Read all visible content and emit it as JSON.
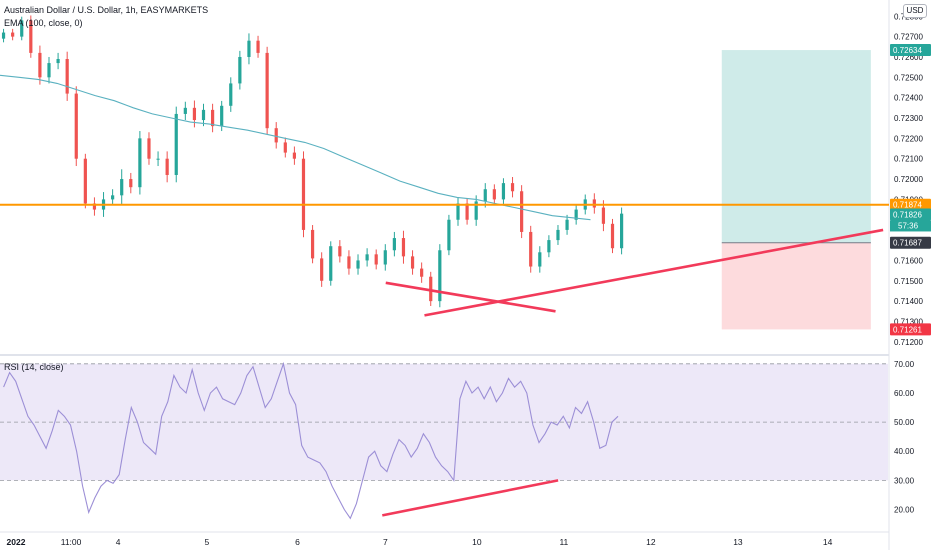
{
  "header": {
    "title": "Australian Dollar / U.S. Dollar, 1h, EASYMARKETS",
    "ema_label": "EMA (100, close, 0)",
    "currency": "USD"
  },
  "rsi": {
    "label": "RSI (14, close)"
  },
  "colors": {
    "up": "#26a69a",
    "down": "#ef5350",
    "ema": "#5ab1c0",
    "orange": "#ff9800",
    "trend": "#f23a5a",
    "rsi_line": "#9c8fd6",
    "rsi_band": "#ede8f8",
    "target": "#26a69a",
    "stop": "#f23645",
    "entry": "#787b86"
  },
  "chart_data": [
    {
      "type": "candlestick",
      "symbol": "Australian Dollar / U.S. Dollar",
      "interval": "1h",
      "ylim": [
        0.7115,
        0.7288
      ],
      "y_ticks": [
        "0.72800",
        "0.72700",
        "0.72600",
        "0.72500",
        "0.72400",
        "0.72300",
        "0.72200",
        "0.72100",
        "0.72000",
        "0.71900",
        "0.71800",
        "0.71700",
        "0.71600",
        "0.71500",
        "0.71400",
        "0.71300",
        "0.71200"
      ],
      "x_ticks": [
        "2022",
        "11:00",
        "4",
        "5",
        "6",
        "7",
        "10",
        "11",
        "12",
        "13",
        "14"
      ],
      "close_path": [
        [
          0.7272,
          3
        ],
        [
          0.727,
          3
        ],
        [
          0.7278,
          3
        ],
        [
          0.7262,
          4
        ],
        [
          0.725,
          6
        ],
        [
          0.7257,
          5
        ],
        [
          0.7259,
          5
        ],
        [
          0.7242,
          6
        ],
        [
          0.721,
          6
        ],
        [
          0.7188,
          4
        ],
        [
          0.7185,
          5
        ],
        [
          0.719,
          6
        ],
        [
          0.7192,
          5
        ],
        [
          0.72,
          8
        ],
        [
          0.7196,
          5
        ],
        [
          0.722,
          6
        ],
        [
          0.721,
          5
        ],
        [
          0.721,
          6
        ],
        [
          0.7202,
          6
        ],
        [
          0.7232,
          6
        ],
        [
          0.7235,
          5
        ],
        [
          0.7229,
          6
        ],
        [
          0.7234,
          5
        ],
        [
          0.7226,
          5
        ],
        [
          0.7236,
          4
        ],
        [
          0.7247,
          5
        ],
        [
          0.726,
          5
        ],
        [
          0.7268,
          6
        ],
        [
          0.7262,
          4
        ],
        [
          0.7225,
          5
        ],
        [
          0.7218,
          5
        ],
        [
          0.7213,
          4
        ],
        [
          0.721,
          5
        ],
        [
          0.7175,
          6
        ],
        [
          0.7161,
          4
        ],
        [
          0.715,
          5
        ],
        [
          0.7167,
          4
        ],
        [
          0.7162,
          5
        ],
        [
          0.7156,
          5
        ],
        [
          0.716,
          5
        ],
        [
          0.7163,
          5
        ],
        [
          0.7158,
          4
        ],
        [
          0.7165,
          5
        ],
        [
          0.7171,
          5
        ],
        [
          0.7162,
          6
        ],
        [
          0.7156,
          5
        ],
        [
          0.7152,
          5
        ],
        [
          0.714,
          4
        ],
        [
          0.7165,
          5
        ],
        [
          0.718,
          4
        ],
        [
          0.7188,
          5
        ],
        [
          0.718,
          4
        ],
        [
          0.7189,
          5
        ],
        [
          0.7195,
          5
        ],
        [
          0.719,
          4
        ],
        [
          0.7198,
          4
        ],
        [
          0.7194,
          5
        ],
        [
          0.7174,
          5
        ],
        [
          0.7157,
          5
        ],
        [
          0.7164,
          5
        ],
        [
          0.717,
          4
        ],
        [
          0.7175,
          4
        ],
        [
          0.718,
          4
        ],
        [
          0.7185,
          4
        ],
        [
          0.719,
          4
        ],
        [
          0.7186,
          5
        ],
        [
          0.7178,
          6
        ],
        [
          0.7166,
          4
        ],
        [
          0.7183,
          5
        ]
      ],
      "ema_100": [
        0.7251,
        0.725,
        0.7249,
        0.7247,
        0.7244,
        0.7241,
        0.72385,
        0.7235,
        0.7232,
        0.723,
        0.7228,
        0.7227,
        0.72255,
        0.7224,
        0.7222,
        0.722,
        0.7218,
        0.7215,
        0.7211,
        0.7207,
        0.7203,
        0.7199,
        0.7196,
        0.7193,
        0.7191,
        0.719,
        0.7188,
        0.7186,
        0.7184,
        0.7182,
        0.7181,
        0.718
      ],
      "last_price": "0.71826",
      "countdown": "57:36",
      "price_labels": [
        {
          "text": "0.72634",
          "value": 0.72634,
          "color": "#26a69a"
        },
        {
          "text": "0.71874",
          "value": 0.71874,
          "color": "#ff9800"
        },
        {
          "text": "0.71826",
          "value": 0.71826,
          "color": "#26a69a"
        },
        {
          "text": "0.71687",
          "value": 0.71687,
          "color": "#363a45"
        },
        {
          "text": "0.71261",
          "value": 0.71261,
          "color": "#f23645"
        }
      ],
      "horizontal_level": 0.71874,
      "position": {
        "entry": 0.71687,
        "target": 0.72634,
        "stop": 0.71261,
        "start_bar": 0.8128,
        "end_bar": 0.9807
      },
      "support_lines": [
        {
          "from": [
            0.4344,
            0.7149
          ],
          "to": [
            0.6256,
            0.7135
          ]
        },
        {
          "from": [
            0.478,
            0.7133
          ],
          "to": [
            0.9945,
            0.7175
          ]
        }
      ]
    },
    {
      "type": "line",
      "name": "RSI (14, close)",
      "ylim": [
        14,
        72
      ],
      "y_ticks": [
        "70.00",
        "60.00",
        "50.00",
        "40.00",
        "30.00",
        "20.00"
      ],
      "bands": [
        70,
        50,
        30
      ],
      "values": [
        62,
        67,
        64,
        58,
        52,
        49,
        45,
        41,
        47,
        54,
        52,
        49,
        40,
        28,
        19,
        24,
        28,
        30,
        29,
        32,
        44,
        55,
        50,
        43,
        41,
        39,
        52,
        57,
        66,
        62,
        60,
        68,
        60,
        54,
        60,
        62,
        58,
        57,
        56,
        60,
        66,
        69,
        62,
        55,
        58,
        64,
        70,
        60,
        56,
        42,
        38,
        37,
        36,
        33,
        28,
        24,
        20,
        17,
        22,
        30,
        38,
        40,
        35,
        33,
        39,
        44,
        42,
        38,
        41,
        46,
        43,
        38,
        35,
        33,
        30,
        58,
        64,
        60,
        62,
        58,
        62,
        57,
        60,
        65,
        62,
        64,
        60,
        49,
        43,
        46,
        50,
        49,
        52,
        48,
        55,
        53,
        57,
        50,
        41,
        42,
        50,
        52
      ],
      "trend_line": {
        "from": [
          0.4305,
          18
        ],
        "to": [
          0.6285,
          30
        ]
      }
    }
  ]
}
